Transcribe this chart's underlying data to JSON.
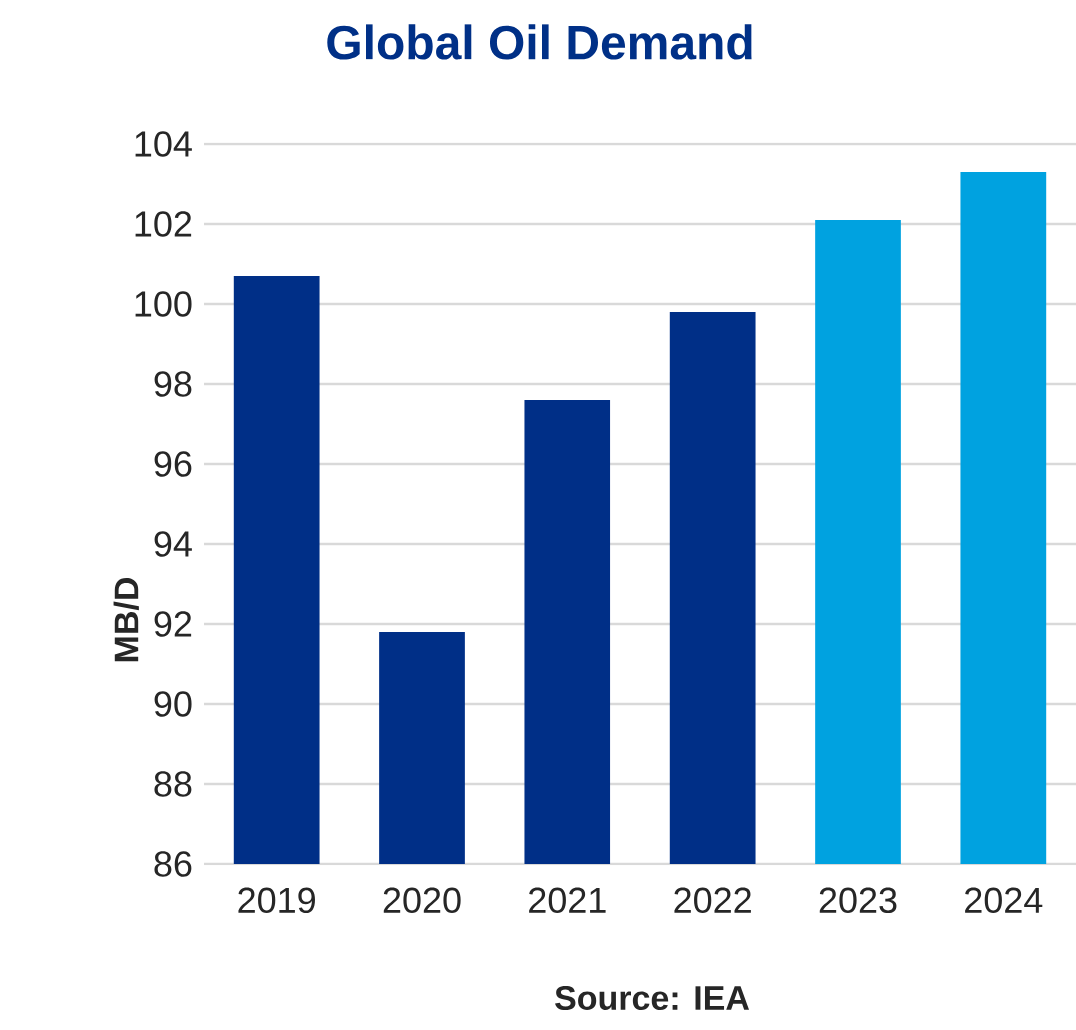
{
  "chart_data": {
    "type": "bar",
    "title": "Global Oil Demand",
    "ylabel": "MB/D",
    "categories": [
      "2019",
      "2020",
      "2021",
      "2022",
      "2023",
      "2024"
    ],
    "values": [
      100.7,
      91.8,
      97.6,
      99.8,
      102.1,
      103.3
    ],
    "colors": [
      "#002f87",
      "#002f87",
      "#002f87",
      "#002f87",
      "#00a2e0",
      "#00a2e0"
    ],
    "ylim": [
      86,
      104
    ],
    "yticks": [
      86,
      88,
      90,
      92,
      94,
      96,
      98,
      100,
      102,
      104
    ],
    "grid": "y",
    "annotations": [
      "Source: IEA"
    ]
  }
}
